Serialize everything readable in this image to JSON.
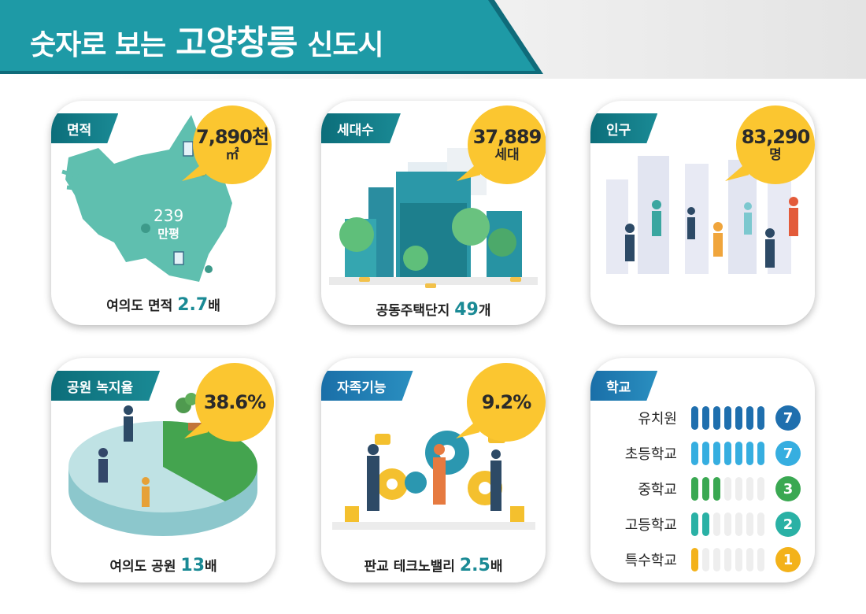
{
  "header": {
    "title_part1": "숫자로 보는",
    "title_part2": "고양창릉",
    "title_part3": "신도시"
  },
  "area": {
    "tag": "면적",
    "bubble_value": "7,890천",
    "bubble_unit": "㎡",
    "map_label_value": "239",
    "map_label_unit": "만평",
    "caption_text": "여의도 면적",
    "caption_value": "2.7",
    "caption_unit": "배"
  },
  "households": {
    "tag": "세대수",
    "bubble_value": "37,889",
    "bubble_unit": "세대",
    "caption_text": "공동주택단지",
    "caption_value": "49",
    "caption_unit": "개"
  },
  "population": {
    "tag": "인구",
    "bubble_value": "83,290",
    "bubble_unit": "명"
  },
  "park": {
    "tag": "공원 녹지율",
    "bubble_value": "38.6%",
    "ratio_percent": 38.6,
    "caption_text": "여의도 공원",
    "caption_value": "13",
    "caption_unit": "배"
  },
  "self_sufficiency": {
    "tag": "자족기능",
    "bubble_value": "9.2%",
    "caption_text": "판교 테크노밸리",
    "caption_value": "2.5",
    "caption_unit": "배"
  },
  "schools": {
    "tag": "학교",
    "max": 7,
    "items": [
      {
        "label": "유치원",
        "count": 7,
        "count_text": "7",
        "color": "#1f6fae"
      },
      {
        "label": "초등학교",
        "count": 7,
        "count_text": "7",
        "color": "#36aee0"
      },
      {
        "label": "중학교",
        "count": 3,
        "count_text": "3",
        "color": "#3aa852"
      },
      {
        "label": "고등학교",
        "count": 2,
        "count_text": "2",
        "color": "#2ab1a5"
      },
      {
        "label": "특수학교",
        "count": 1,
        "count_text": "1",
        "color": "#f3b21a"
      }
    ]
  }
}
